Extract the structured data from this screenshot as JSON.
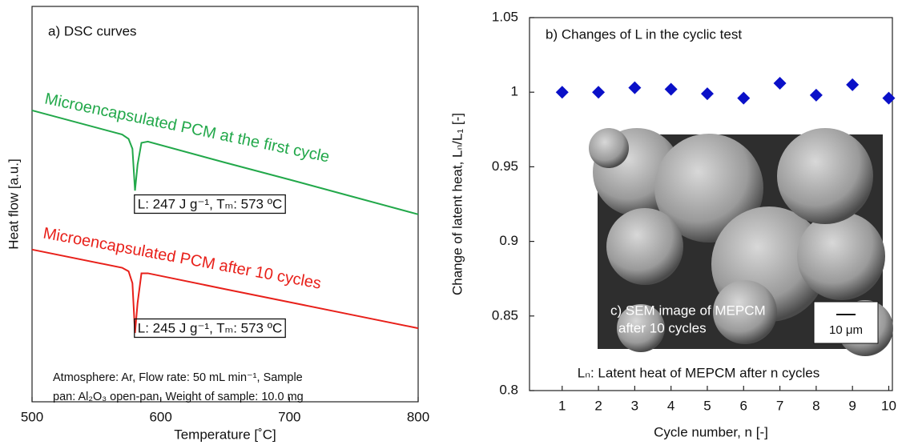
{
  "chart_data": [
    {
      "type": "line",
      "title": "a) DSC curves",
      "x_label": "Temperature [˚C]",
      "y_label": "Heat flow [a.u.]",
      "x": [
        500,
        570,
        575,
        578,
        580,
        582,
        585,
        590,
        650,
        700,
        750,
        800
      ],
      "series": [
        {
          "name": "Microencapsulated PCM at the first cycle",
          "color": "#22a84a",
          "values": [
            73.7,
            67.6,
            66.5,
            64,
            53.4,
            60,
            65.5,
            65.8,
            60.5,
            56.2,
            51.8,
            47.4
          ]
        },
        {
          "name": "Microencapsulated PCM after 10 cycles",
          "color": "#e8201a",
          "values": [
            38.5,
            33.9,
            33,
            30,
            17.4,
            25,
            32.5,
            32.5,
            28.5,
            25.2,
            21.9,
            18.6
          ]
        }
      ],
      "annotations": [
        "L: 247 J g⁻¹, Tₘ: 573 ºC",
        "L: 245 J g⁻¹, Tₘ: 573 ºC"
      ],
      "note": [
        "Atmosphere: Ar, Flow rate: 50 mL min⁻¹, Sample",
        "pan: Al₂O₃ open-pan, Weight of sample: 10.0 mg"
      ],
      "xlim": [
        500,
        800
      ],
      "xticks": [
        500,
        600,
        700,
        800
      ],
      "ylim": [
        0,
        100
      ]
    },
    {
      "type": "scatter",
      "title": "b) Changes of L in the cyclic test",
      "x_label": "Cycle number, n [-]",
      "y_label": "Change of latent heat, Lₙ/L₁ [-]",
      "x": [
        1,
        2,
        3,
        4,
        5,
        6,
        7,
        8,
        9,
        10
      ],
      "values": [
        1.0,
        1.0,
        1.003,
        1.002,
        0.999,
        0.996,
        1.006,
        0.998,
        1.005,
        0.996
      ],
      "color": "#0a10c8",
      "inset_label": [
        "c) SEM image of MEPCM",
        "after 10 cycles"
      ],
      "scale_bar": "10 μm",
      "footnote": "Lₙ: Latent heat of MEPCM after n cycles",
      "xlim": [
        0.1,
        10.1
      ],
      "xticks": [
        1,
        2,
        3,
        4,
        5,
        6,
        7,
        8,
        9,
        10
      ],
      "ylim": [
        0.8,
        1.05
      ],
      "yticks": [
        0.8,
        0.85,
        0.9,
        0.95,
        1,
        1.05
      ]
    }
  ]
}
